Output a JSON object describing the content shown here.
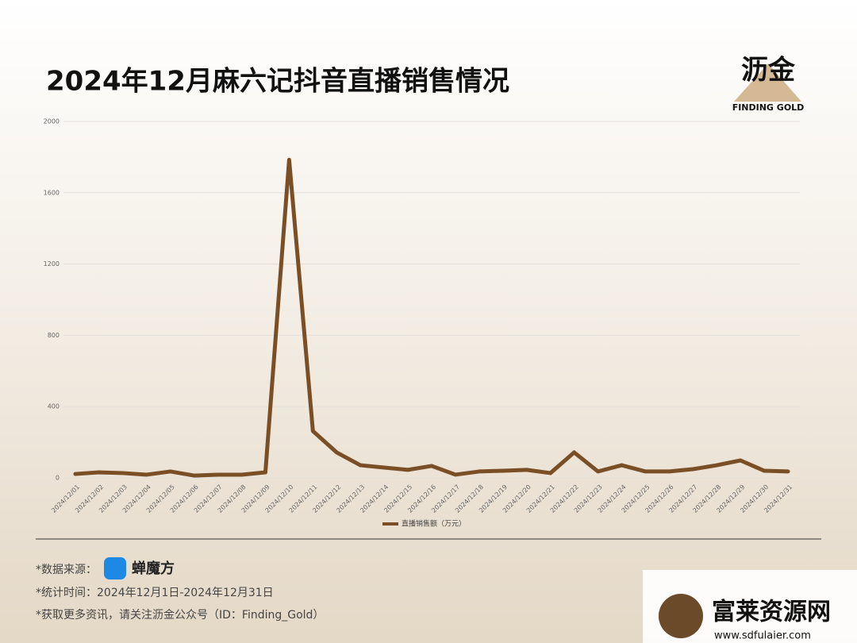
{
  "chart_data": {
    "type": "line",
    "title": "2024年12月麻六记抖音直播销售情况",
    "categories": [
      "2024/12/01",
      "2024/12/02",
      "2024/12/03",
      "2024/12/04",
      "2024/12/05",
      "2024/12/06",
      "2024/12/07",
      "2024/12/08",
      "2024/12/09",
      "2024/12/10",
      "2024/12/11",
      "2024/12/12",
      "2024/12/13",
      "2024/12/14",
      "2024/12/15",
      "2024/12/16",
      "2024/12/17",
      "2024/12/18",
      "2024/12/19",
      "2024/12/20",
      "2024/12/21",
      "2024/12/22",
      "2024/12/23",
      "2024/12/24",
      "2024/12/25",
      "2024/12/26",
      "2024/12/27",
      "2024/12/28",
      "2024/12/29",
      "2024/12/30",
      "2024/12/31"
    ],
    "series": [
      {
        "name": "直播销售额（万元）",
        "color": "#7b4f26",
        "values": [
          22,
          31,
          27,
          18,
          36,
          13,
          18,
          18,
          31,
          1785,
          263,
          143,
          71,
          58,
          45,
          67,
          18,
          36,
          40,
          45,
          27,
          143,
          36,
          71,
          36,
          36,
          49,
          71,
          98,
          40,
          36
        ]
      }
    ],
    "ylim": [
      0,
      2000
    ],
    "yticks": [
      0,
      400,
      800,
      1200,
      1600,
      2000
    ],
    "grid": true,
    "legend": "bottom"
  },
  "logo": {
    "name": "沥金",
    "tagline": "FINDING GOLD"
  },
  "footer": {
    "source_label": "*数据来源：",
    "source_name": "蝉魔方",
    "period": "*统计时间：2024年12月1日-2024年12月31日",
    "follow": "*获取更多资讯，请关注沥金公众号（ID：Finding_Gold）"
  },
  "watermark": {
    "name": "富莱资源网",
    "url": "www.sdfulaier.com"
  }
}
